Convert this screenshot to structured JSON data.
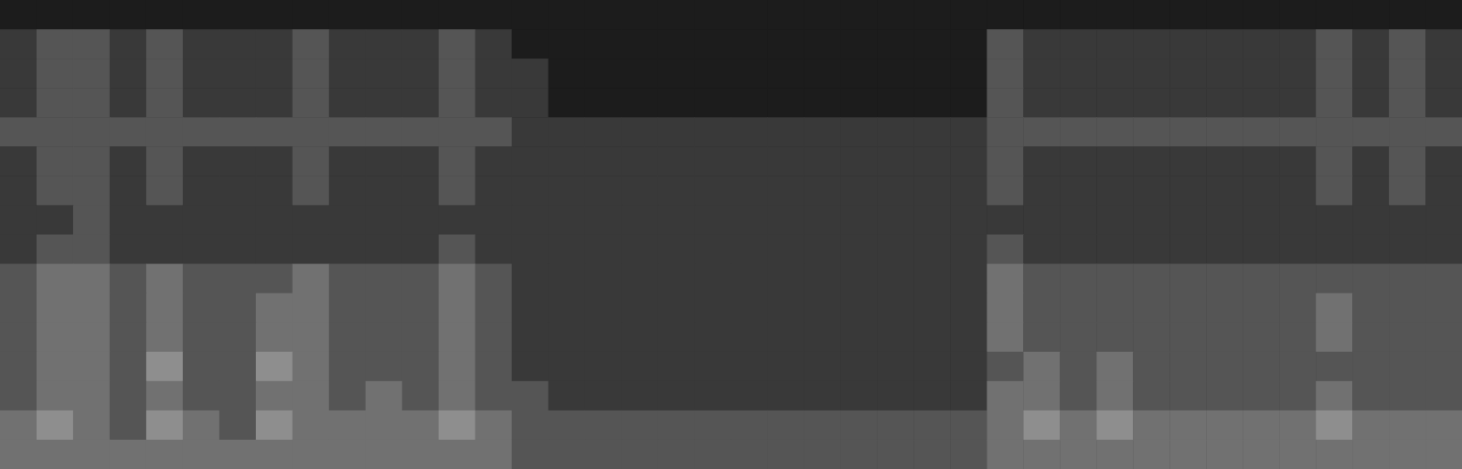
{
  "chart_data": {
    "type": "heatmap",
    "tick_labels": false,
    "color": "#ffffff",
    "zlim": [
      0,
      9
    ],
    "z": [
      [
        1,
        1,
        1,
        1,
        1,
        1,
        1,
        1,
        1,
        1,
        1,
        1,
        1,
        1,
        1,
        1,
        1,
        1,
        1,
        1,
        1,
        1,
        1,
        1,
        1,
        1,
        1,
        1,
        1,
        1,
        1,
        1,
        1,
        1,
        1,
        1,
        1,
        1,
        1,
        1
      ],
      [
        2,
        3,
        3,
        2,
        3,
        2,
        2,
        2,
        3,
        2,
        2,
        2,
        3,
        2,
        1,
        1,
        1,
        1,
        1,
        1,
        1,
        1,
        1,
        1,
        1,
        1,
        1,
        3,
        2,
        2,
        2,
        2,
        2,
        2,
        2,
        2,
        3,
        2,
        3,
        2
      ],
      [
        2,
        3,
        3,
        2,
        3,
        2,
        2,
        2,
        3,
        2,
        2,
        2,
        3,
        2,
        2,
        1,
        1,
        1,
        1,
        1,
        1,
        1,
        1,
        1,
        1,
        1,
        1,
        3,
        2,
        2,
        2,
        2,
        2,
        2,
        2,
        2,
        3,
        2,
        3,
        2
      ],
      [
        2,
        3,
        3,
        2,
        3,
        2,
        2,
        2,
        3,
        2,
        2,
        2,
        3,
        2,
        2,
        1,
        1,
        1,
        1,
        1,
        1,
        1,
        1,
        1,
        1,
        1,
        1,
        3,
        2,
        2,
        2,
        2,
        2,
        2,
        2,
        2,
        3,
        2,
        3,
        2
      ],
      [
        3,
        3,
        3,
        3,
        3,
        3,
        3,
        3,
        3,
        3,
        3,
        3,
        3,
        3,
        2,
        2,
        2,
        2,
        2,
        2,
        2,
        2,
        2,
        2,
        2,
        2,
        2,
        3,
        3,
        3,
        3,
        3,
        3,
        3,
        3,
        3,
        3,
        3,
        3,
        3
      ],
      [
        2,
        3,
        3,
        2,
        3,
        2,
        2,
        2,
        3,
        2,
        2,
        2,
        3,
        2,
        2,
        2,
        2,
        2,
        2,
        2,
        2,
        2,
        2,
        2,
        2,
        2,
        2,
        3,
        2,
        2,
        2,
        2,
        2,
        2,
        2,
        2,
        3,
        2,
        3,
        2
      ],
      [
        2,
        3,
        3,
        2,
        3,
        2,
        2,
        2,
        3,
        2,
        2,
        2,
        3,
        2,
        2,
        2,
        2,
        2,
        2,
        2,
        2,
        2,
        2,
        2,
        2,
        2,
        2,
        3,
        2,
        2,
        2,
        2,
        2,
        2,
        2,
        2,
        3,
        2,
        3,
        2
      ],
      [
        2,
        2,
        3,
        2,
        2,
        2,
        2,
        2,
        2,
        2,
        2,
        2,
        2,
        2,
        2,
        2,
        2,
        2,
        2,
        2,
        2,
        2,
        2,
        2,
        2,
        2,
        2,
        2,
        2,
        2,
        2,
        2,
        2,
        2,
        2,
        2,
        2,
        2,
        2,
        2
      ],
      [
        2,
        3,
        3,
        2,
        2,
        2,
        2,
        2,
        2,
        2,
        2,
        2,
        3,
        2,
        2,
        2,
        2,
        2,
        2,
        2,
        2,
        2,
        2,
        2,
        2,
        2,
        2,
        3,
        2,
        2,
        2,
        2,
        2,
        2,
        2,
        2,
        2,
        2,
        2,
        2
      ],
      [
        3,
        4,
        4,
        3,
        4,
        3,
        3,
        3,
        4,
        3,
        3,
        3,
        4,
        3,
        2,
        2,
        2,
        2,
        2,
        2,
        2,
        2,
        2,
        2,
        2,
        2,
        2,
        4,
        3,
        3,
        3,
        3,
        3,
        3,
        3,
        3,
        3,
        3,
        3,
        3
      ],
      [
        3,
        4,
        4,
        3,
        4,
        3,
        3,
        4,
        4,
        3,
        3,
        3,
        4,
        3,
        2,
        2,
        2,
        2,
        2,
        2,
        2,
        2,
        2,
        2,
        2,
        2,
        2,
        4,
        3,
        3,
        3,
        3,
        3,
        3,
        3,
        3,
        4,
        3,
        3,
        3
      ],
      [
        3,
        4,
        4,
        3,
        4,
        3,
        3,
        4,
        4,
        3,
        3,
        3,
        4,
        3,
        2,
        2,
        2,
        2,
        2,
        2,
        2,
        2,
        2,
        2,
        2,
        2,
        2,
        4,
        3,
        3,
        3,
        3,
        3,
        3,
        3,
        3,
        4,
        3,
        3,
        3
      ],
      [
        3,
        4,
        4,
        3,
        5,
        3,
        3,
        5,
        4,
        3,
        3,
        3,
        4,
        3,
        2,
        2,
        2,
        2,
        2,
        2,
        2,
        2,
        2,
        2,
        2,
        2,
        2,
        3,
        4,
        3,
        4,
        3,
        3,
        3,
        3,
        3,
        3,
        3,
        3,
        3
      ],
      [
        3,
        4,
        4,
        3,
        4,
        3,
        3,
        4,
        4,
        3,
        4,
        3,
        4,
        3,
        3,
        2,
        2,
        2,
        2,
        2,
        2,
        2,
        2,
        2,
        2,
        2,
        2,
        4,
        4,
        3,
        4,
        3,
        3,
        3,
        3,
        3,
        4,
        3,
        3,
        3
      ],
      [
        4,
        5,
        4,
        3,
        5,
        4,
        3,
        5,
        4,
        4,
        4,
        4,
        5,
        4,
        3,
        3,
        3,
        3,
        3,
        3,
        3,
        3,
        3,
        3,
        3,
        3,
        3,
        4,
        5,
        4,
        5,
        4,
        4,
        4,
        4,
        4,
        5,
        4,
        4,
        4
      ],
      [
        4,
        4,
        4,
        4,
        4,
        4,
        4,
        4,
        4,
        4,
        4,
        4,
        4,
        4,
        3,
        3,
        3,
        3,
        3,
        3,
        3,
        3,
        3,
        3,
        3,
        3,
        3,
        4,
        4,
        4,
        4,
        4,
        4,
        4,
        4,
        4,
        4,
        4,
        4,
        4
      ]
    ]
  }
}
